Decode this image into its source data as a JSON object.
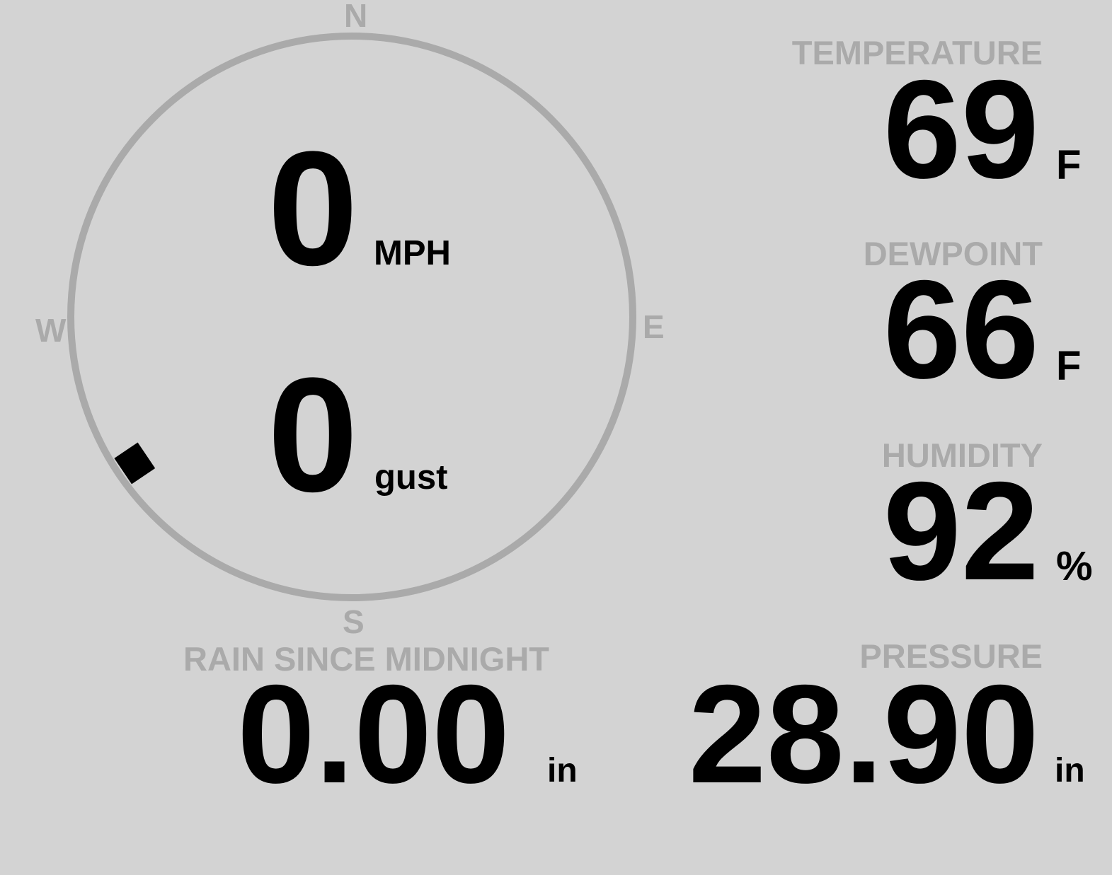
{
  "wind": {
    "speed": "0",
    "speed_unit": "MPH",
    "gust": "0",
    "gust_unit": "gust",
    "direction_deg": 236,
    "compass": {
      "n": "N",
      "e": "E",
      "s": "S",
      "w": "W"
    }
  },
  "temperature": {
    "label": "TEMPERATURE",
    "value": "69",
    "unit": "F"
  },
  "dewpoint": {
    "label": "DEWPOINT",
    "value": "66",
    "unit": "F"
  },
  "humidity": {
    "label": "HUMIDITY",
    "value": "92",
    "unit": "%"
  },
  "rain": {
    "label": "RAIN SINCE MIDNIGHT",
    "value": "0.00",
    "unit": "in"
  },
  "pressure": {
    "label": "PRESSURE",
    "value": "28.90",
    "unit": "in"
  },
  "colors": {
    "background": "#d3d3d3",
    "label": "#aaaaaa",
    "value": "#000000"
  }
}
